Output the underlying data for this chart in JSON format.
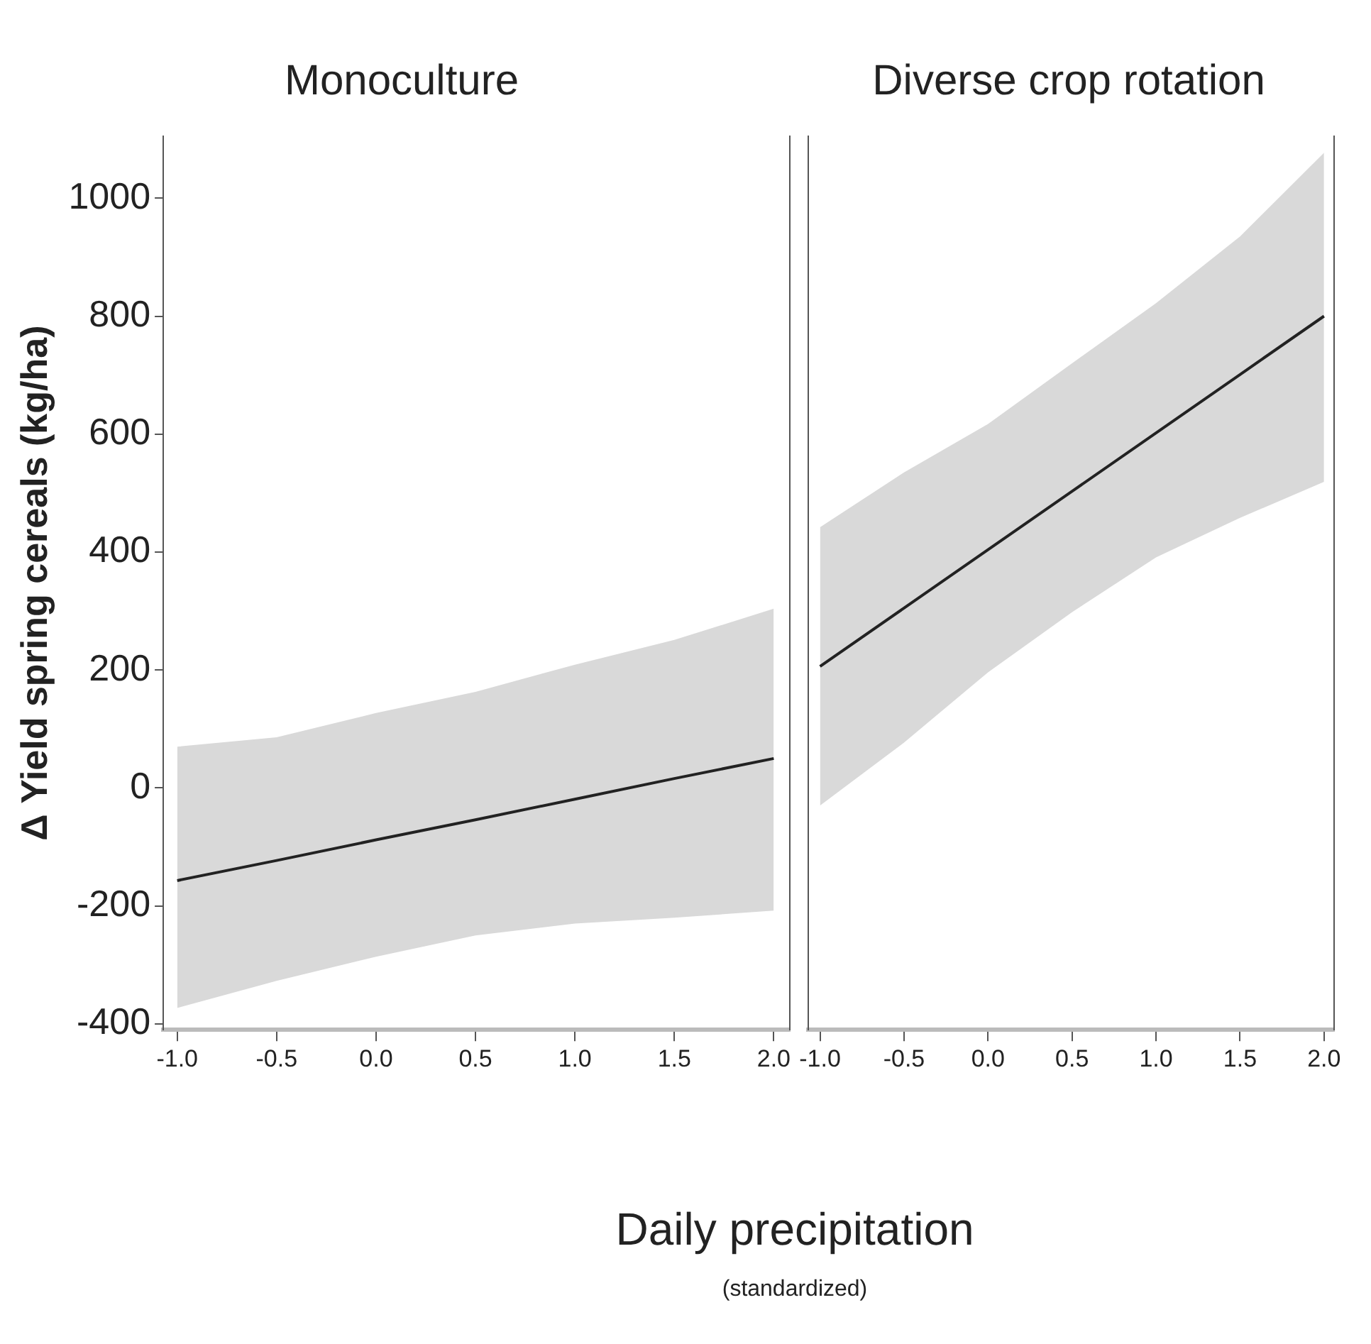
{
  "chart_data": [
    {
      "type": "line",
      "title": "Monoculture",
      "ylabel": "Δ Yield spring cereals (kg/ha)",
      "xlabel": "Daily precipitation",
      "annotations": [
        "(standardized)"
      ],
      "x": [
        -1,
        -0.5,
        0,
        0.5,
        1,
        1.5,
        2
      ],
      "xlim": [
        -1.07,
        2.08
      ],
      "xticks": [
        {
          "value": -1,
          "label": "-1.0"
        },
        {
          "value": -0.5,
          "label": "-0.5"
        },
        {
          "value": 0,
          "label": "0.0"
        },
        {
          "value": 0.5,
          "label": "0.5"
        },
        {
          "value": 1,
          "label": "1.0"
        },
        {
          "value": 1.5,
          "label": "1.5"
        },
        {
          "value": 2,
          "label": "2.0"
        }
      ],
      "ylim": [
        -410,
        1105
      ],
      "yticks": [
        -400,
        -200,
        0,
        200,
        400,
        600,
        800,
        1000
      ],
      "grid": false,
      "legend": false,
      "marker": "none",
      "series": [
        {
          "color": "#222222",
          "values": [
            -157,
            -123,
            -88,
            -54,
            -19,
            16,
            50
          ],
          "lower": [
            -373,
            -327,
            -286,
            -250,
            -230,
            -220,
            -208
          ],
          "upper": [
            70,
            86,
            127,
            163,
            209,
            251,
            304
          ]
        }
      ]
    },
    {
      "type": "line",
      "title": "Diverse crop rotation",
      "x": [
        -1,
        -0.5,
        0,
        0.5,
        1,
        1.5,
        2
      ],
      "xlim": [
        -1.07,
        2.06
      ],
      "xticks": [
        {
          "value": -1,
          "label": "-1.0"
        },
        {
          "value": -0.5,
          "label": "-0.5"
        },
        {
          "value": 0,
          "label": "0.0"
        },
        {
          "value": 0.5,
          "label": "0.5"
        },
        {
          "value": 1,
          "label": "1.0"
        },
        {
          "value": 1.5,
          "label": "1.5"
        },
        {
          "value": 2,
          "label": "2.0"
        }
      ],
      "ylim": [
        -410,
        1105
      ],
      "yticks": [
        -400,
        -200,
        0,
        200,
        400,
        600,
        800,
        1000
      ],
      "tick_labels": "x",
      "grid": false,
      "legend": false,
      "marker": "none",
      "series": [
        {
          "color": "#222222",
          "values": [
            206,
            305,
            404,
            503,
            602,
            701,
            800
          ],
          "lower": [
            -30,
            77,
            196,
            298,
            391,
            458,
            519
          ],
          "upper": [
            442,
            535,
            617,
            720,
            822,
            935,
            1077
          ]
        }
      ]
    }
  ]
}
